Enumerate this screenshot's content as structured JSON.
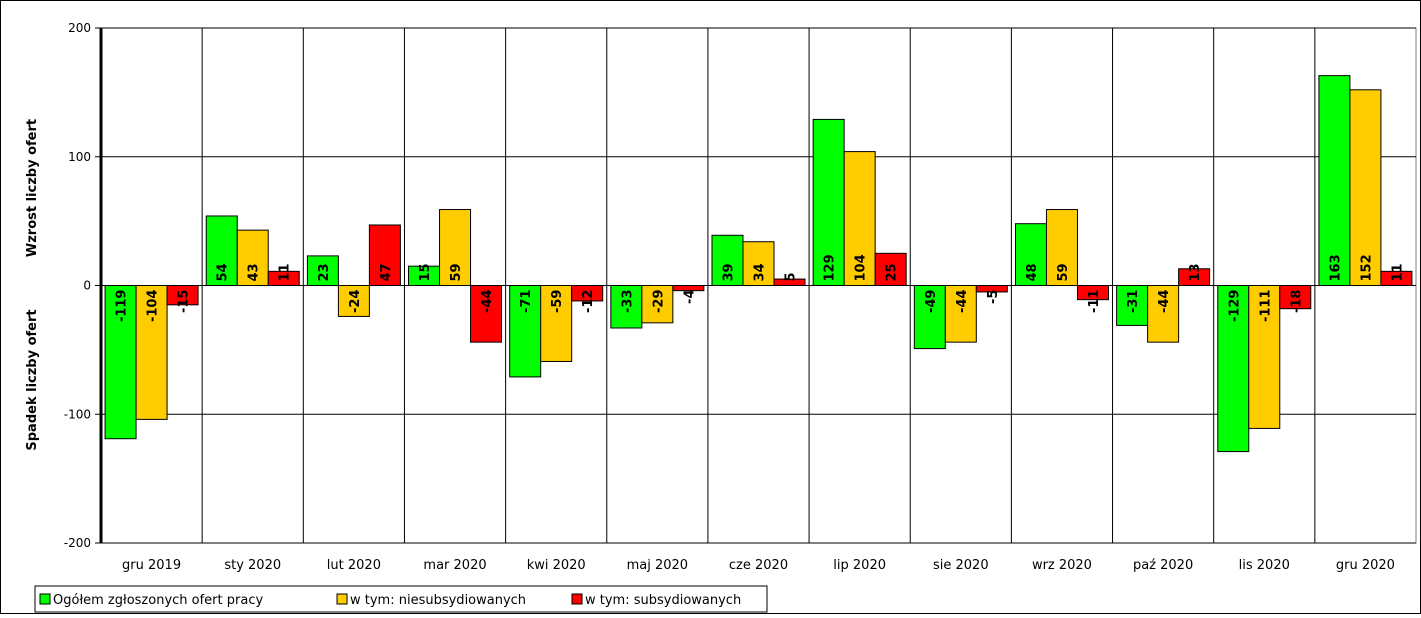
{
  "chart_data": {
    "type": "bar",
    "title": "",
    "xlabel": "",
    "ylabel_top": "Wzrost liczby ofert",
    "ylabel_bottom": "Spadek liczby ofert",
    "ylim": [
      -200,
      200
    ],
    "yticks": [
      200,
      100,
      0,
      -100,
      -200
    ],
    "grid": true,
    "legend_position": "bottom-left",
    "categories": [
      "gru 2019",
      "sty 2020",
      "lut 2020",
      "mar 2020",
      "kwi 2020",
      "maj 2020",
      "cze 2020",
      "lip 2020",
      "sie 2020",
      "wrz 2020",
      "paź 2020",
      "lis 2020",
      "gru 2020"
    ],
    "series": [
      {
        "name": "Ogółem zgłoszonych ofert pracy",
        "color": "#00ff00",
        "values": [
          -119,
          54,
          23,
          15,
          -71,
          -33,
          39,
          129,
          -49,
          48,
          -31,
          -129,
          163
        ]
      },
      {
        "name": "w tym: niesubsydiowanych",
        "color": "#ffcc00",
        "values": [
          -104,
          43,
          -24,
          59,
          -59,
          -29,
          34,
          104,
          -44,
          59,
          -44,
          -111,
          152
        ]
      },
      {
        "name": "w tym: subsydiowanych",
        "color": "#ff0000",
        "values": [
          -15,
          11,
          47,
          -44,
          -12,
          -4,
          5,
          25,
          -5,
          -11,
          13,
          -18,
          11
        ]
      }
    ]
  }
}
